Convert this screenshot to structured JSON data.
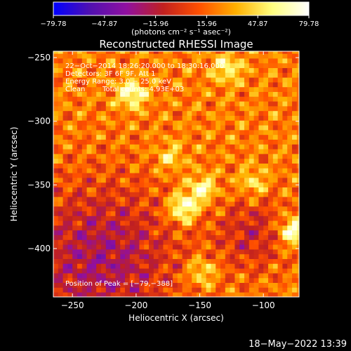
{
  "chart_data": {
    "type": "heatmap",
    "title": "Reconstructed RHESSI Image",
    "xlabel": "Heliocentric X (arcsec)",
    "ylabel": "Heliocentric Y (arcsec)",
    "xlim": [
      -265,
      -72
    ],
    "ylim": [
      -438,
      -245
    ],
    "x_ticks": [
      -250,
      -200,
      -150,
      -100
    ],
    "y_ticks": [
      -250,
      -300,
      -350,
      -400
    ],
    "x_tick_labels": [
      "−250",
      "−200",
      "−150",
      "−100"
    ],
    "y_tick_labels": [
      "−250",
      "−300",
      "−350",
      "−400"
    ],
    "colorbar": {
      "min": -79.78,
      "max": 79.78,
      "tick_values": [
        -79.78,
        -47.87,
        -15.96,
        15.96,
        47.87,
        79.78
      ],
      "tick_labels": [
        "−79.78",
        "−47.87",
        "−15.96",
        "15.96",
        "47.87",
        "79.78"
      ],
      "label": "(photons cm⁻² s⁻¹ asec⁻²)",
      "colormap": [
        "#0000ff",
        "#5010b0",
        "#9010a0",
        "#c02020",
        "#ff5000",
        "#ffb000",
        "#ffff80",
        "#ffffff"
      ]
    },
    "annotations": [
      "22−Oct−2014 18:26:20.000 to 18:30:16.000",
      "Detectors: 3F 6F 9F, Att 1",
      "Energy Range: 3.0 − 25.0 keV",
      "Clean",
      "Total counts: 4.93E+03",
      "Position of Peak = [−79,−388]"
    ],
    "peak": {
      "x": -79,
      "y": -388
    },
    "hotspots": [
      {
        "x": -165,
        "y": -370,
        "v": 78
      },
      {
        "x": -79,
        "y": -388,
        "v": 79
      },
      {
        "x": -150,
        "y": -355,
        "v": 66
      },
      {
        "x": -205,
        "y": -280,
        "v": 70
      },
      {
        "x": -130,
        "y": -260,
        "v": 58
      },
      {
        "x": -175,
        "y": -330,
        "v": 50
      },
      {
        "x": -110,
        "y": -350,
        "v": 52
      },
      {
        "x": -150,
        "y": -420,
        "v": 55
      }
    ],
    "timestamp": "18−May−2022 13:39"
  }
}
